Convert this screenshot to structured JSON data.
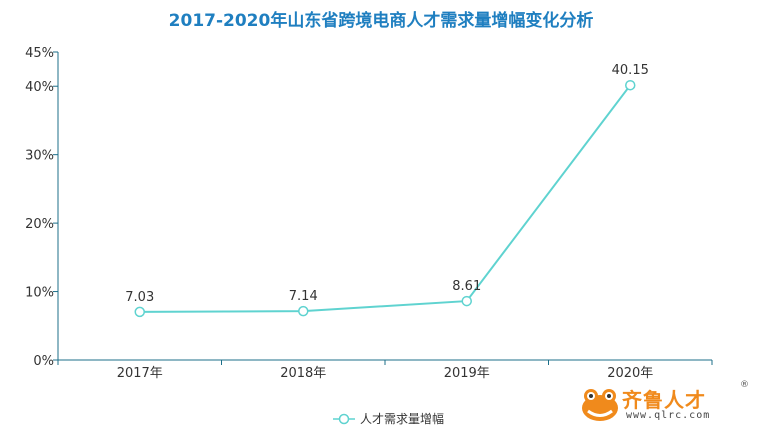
{
  "colors": {
    "title": "#1f7fc0",
    "line": "#5fd3d0",
    "axis": "#1c6f8a",
    "text": "#333333",
    "logo_orange": "#f08a1c"
  },
  "chart_data": {
    "type": "line",
    "title": "2017-2020年山东省跨境电商人才需求量增幅变化分析",
    "categories": [
      "2017年",
      "2018年",
      "2019年",
      "2020年"
    ],
    "series": [
      {
        "name": "人才需求量增幅",
        "values": [
          7.03,
          7.14,
          8.61,
          40.15
        ]
      }
    ],
    "data_labels": [
      "7.03",
      "7.14",
      "8.61",
      "40.15"
    ],
    "y_ticks": [
      "0%",
      "10%",
      "20%",
      "30%",
      "40%",
      "45%"
    ],
    "y_tick_values": [
      0,
      10,
      20,
      30,
      40,
      45
    ],
    "ylim": [
      0,
      45
    ],
    "grid": false,
    "legend_position": "bottom-center"
  },
  "watermark": {
    "name": "齐鲁人才",
    "registered": "®",
    "url": "www.qlrc.com",
    "icon": "frog-logo-icon"
  }
}
